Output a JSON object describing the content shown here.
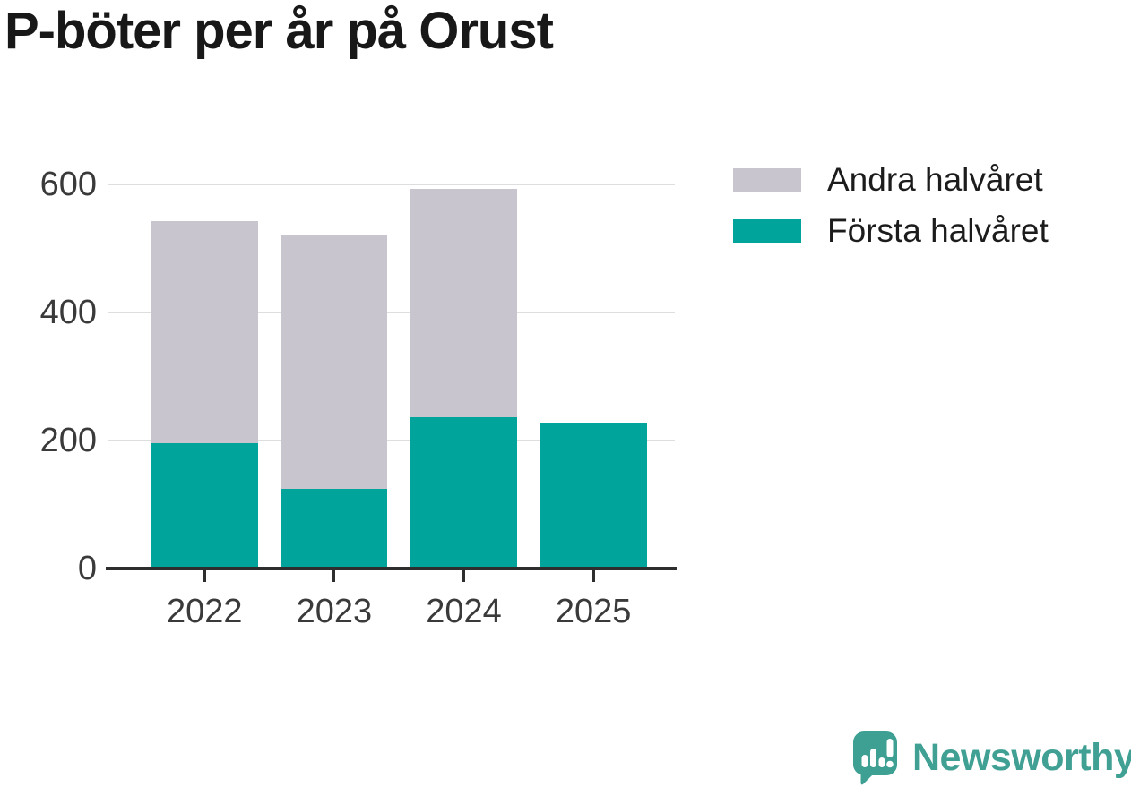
{
  "title": "P-böter per år på Orust",
  "legend": [
    {
      "label": "Andra halvåret",
      "color": "#c8c5ce"
    },
    {
      "label": "Första halvåret",
      "color": "#00a49a"
    }
  ],
  "chart_data": {
    "type": "bar",
    "stacked": true,
    "title": "P-böter per år på Orust",
    "categories": [
      "2022",
      "2023",
      "2024",
      "2025"
    ],
    "series": [
      {
        "name": "Första halvåret",
        "color": "#00a49a",
        "values": [
          195,
          124,
          236,
          228
        ]
      },
      {
        "name": "Andra halvåret",
        "color": "#c8c5ce",
        "values": [
          347,
          398,
          357,
          0
        ]
      }
    ],
    "totals": [
      542,
      522,
      593,
      228
    ],
    "xlabel": "",
    "ylabel": "",
    "yticks": [
      0,
      200,
      400,
      600
    ],
    "ylim": [
      0,
      620
    ],
    "grid": "horizontal",
    "legend_position": "top-right"
  },
  "branding": {
    "logo_text": "Newsworthy",
    "logo_color": "#3fa093",
    "logo_icon": "bar-chart-speech-bubble"
  },
  "colors": {
    "first_half": "#00a49a",
    "second_half": "#c8c5ce",
    "axis": "#2e2e2e",
    "grid": "#dedede",
    "tick_text": "#3a3a3a",
    "title_text": "#181818"
  }
}
